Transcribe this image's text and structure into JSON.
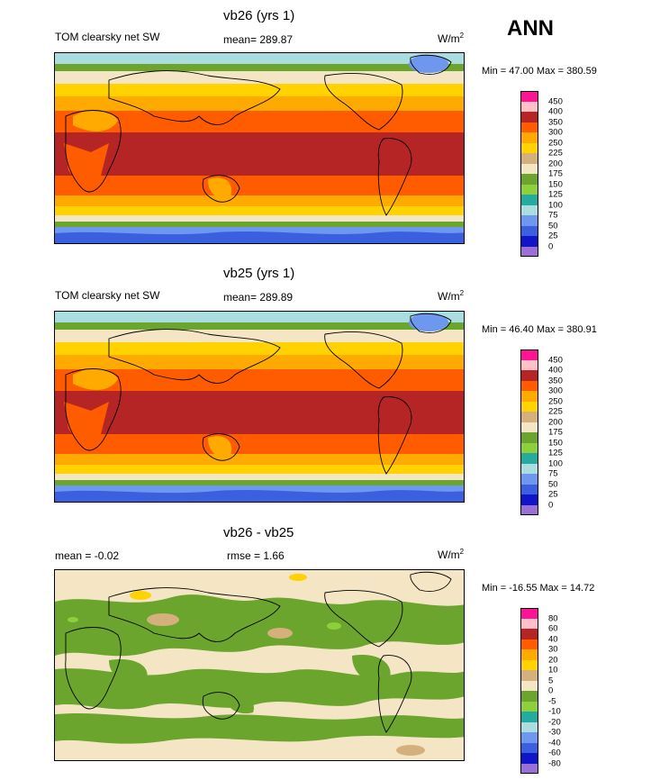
{
  "season": "ANN",
  "colors_abs": [
    "#9b6fd6",
    "#1016c8",
    "#3a60e0",
    "#6e97f0",
    "#aadddf",
    "#25aaa0",
    "#8ed03c",
    "#6ba52e",
    "#f4e6c4",
    "#d4b07c",
    "#ffd200",
    "#ffaa00",
    "#ff5c00",
    "#b52525",
    "#ffc0c8",
    "#ff1493"
  ],
  "colors_diff": [
    "#9b6fd6",
    "#1016c8",
    "#3a60e0",
    "#6e97f0",
    "#aadddf",
    "#25aaa0",
    "#8ed03c",
    "#6ba52e",
    "#f4e6c4",
    "#d4b07c",
    "#ffd200",
    "#ffaa00",
    "#ff5c00",
    "#b52525",
    "#ffc0c8",
    "#ff1493"
  ],
  "panels": [
    {
      "title": "vb26 (yrs 1)",
      "left_label": "TOM clearsky net SW",
      "center_label": "mean= 289.87",
      "units": "W/m",
      "units_sup": "2",
      "minmax": "Min =  47.00 Max = 380.59",
      "colorbar_labels": [
        "450",
        "400",
        "350",
        "300",
        "250",
        "225",
        "200",
        "175",
        "150",
        "125",
        "100",
        "75",
        "50",
        "25",
        "0"
      ]
    },
    {
      "title": "vb25 (yrs 1)",
      "left_label": "TOM clearsky net SW",
      "center_label": "mean= 289.89",
      "units": "W/m",
      "units_sup": "2",
      "minmax": "Min =  46.40 Max = 380.91",
      "colorbar_labels": [
        "450",
        "400",
        "350",
        "300",
        "250",
        "225",
        "200",
        "175",
        "150",
        "125",
        "100",
        "75",
        "50",
        "25",
        "0"
      ]
    },
    {
      "title": "vb26 - vb25",
      "left_label": "mean =  -0.02",
      "center_label": "rmse =   1.66",
      "units": "W/m",
      "units_sup": "2",
      "minmax": "Min = -16.55 Max =  14.72",
      "colorbar_labels": [
        "80",
        "60",
        "40",
        "30",
        "20",
        "10",
        "5",
        "0",
        "-5",
        "-10",
        "-20",
        "-30",
        "-40",
        "-60",
        "-80"
      ]
    }
  ]
}
